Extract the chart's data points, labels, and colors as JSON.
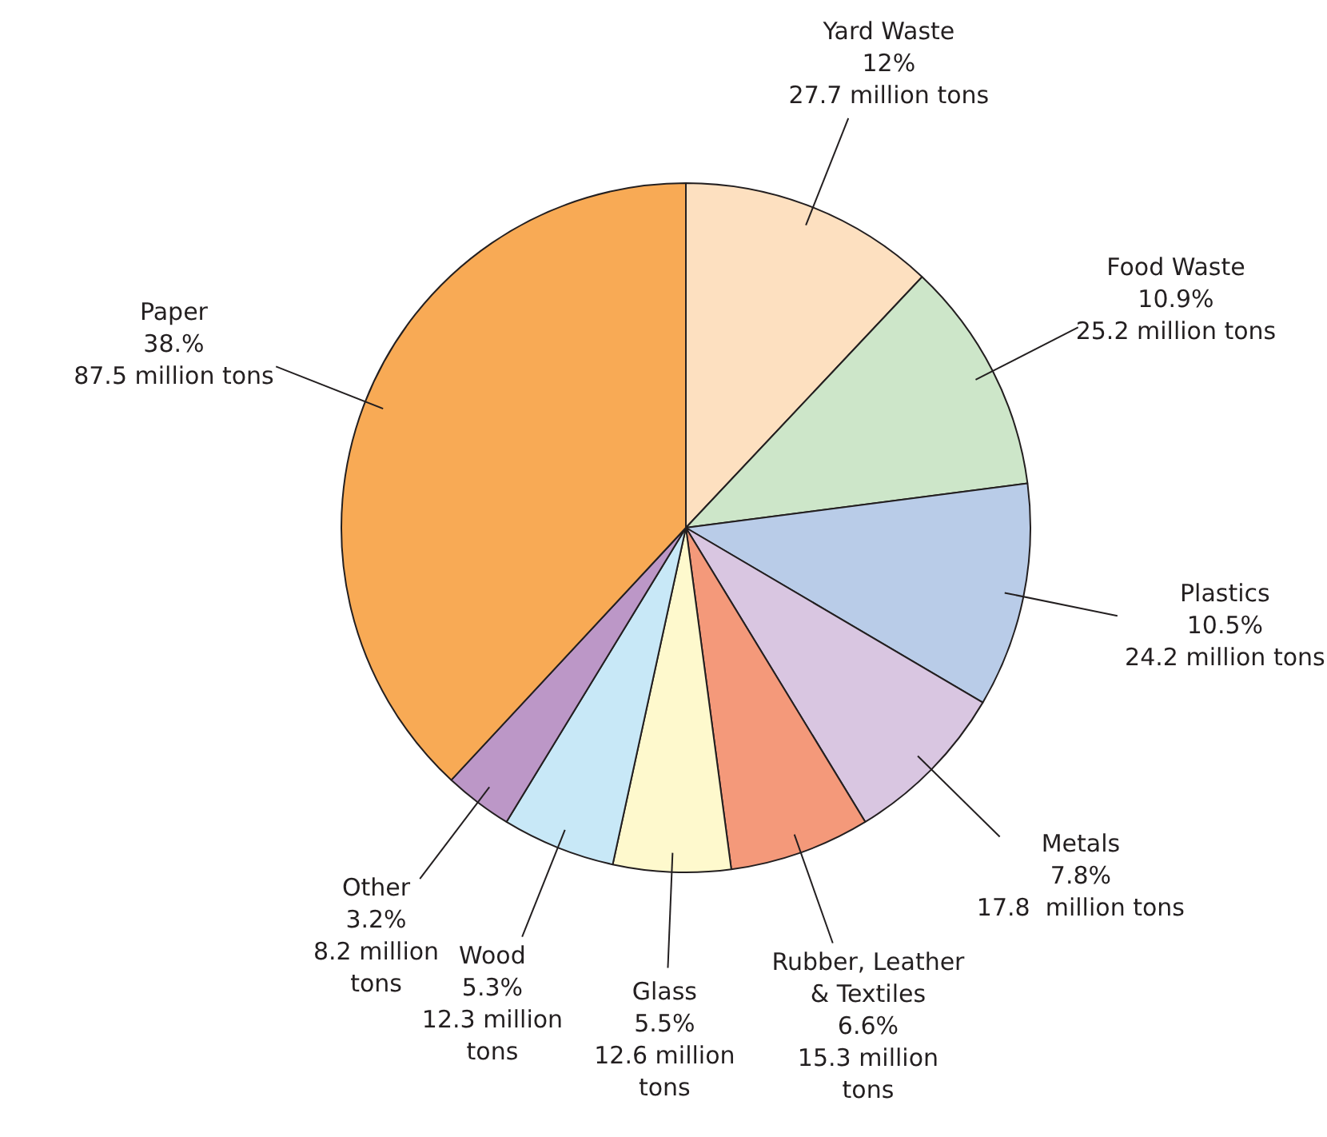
{
  "chart_data": {
    "type": "pie",
    "categories": [
      "Yard Waste",
      "Food Waste",
      "Plastics",
      "Metals",
      "Rubber, Leather\n& Textiles",
      "Glass",
      "Wood",
      "Other",
      "Paper"
    ],
    "values": [
      12,
      10.9,
      10.5,
      7.8,
      6.6,
      5.5,
      5.3,
      3.2,
      38
    ],
    "colors": [
      "#fde0c0",
      "#cde6c9",
      "#b9cce8",
      "#d9c6e1",
      "#f4997a",
      "#fef9cd",
      "#c8e8f7",
      "#bc97c7",
      "#f8aa55"
    ],
    "value_labels": [
      "12%\n27.7 million tons",
      "10.9%\n25.2 million tons",
      "10.5%\n24.2 million tons",
      "7.8%\n17.8  million tons",
      "6.6%\n15.3 million\ntons",
      "5.5%\n12.6 million\ntons",
      "5.3%\n12.3 million\ntons",
      "3.2%\n8.2 million\ntons",
      "38.%\n87.5 million tons"
    ]
  }
}
